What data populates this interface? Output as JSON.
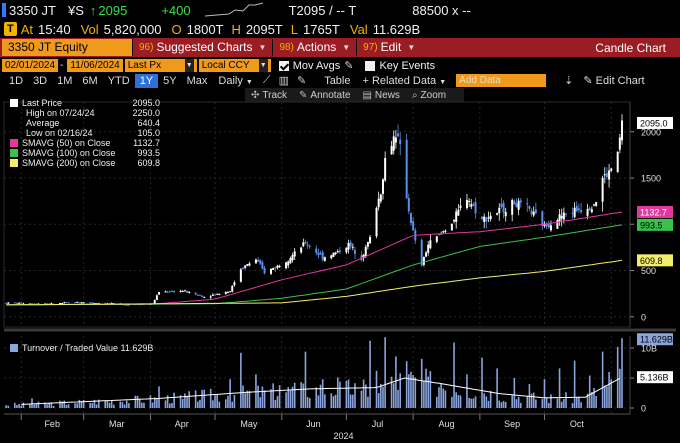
{
  "quote": {
    "ticker": "3350 JT",
    "currency": "¥S",
    "arrow": "↑",
    "last": "2095",
    "change": "+400",
    "t_label": "T2095 / -- T",
    "bid_ask": "88500 x --",
    "at_label": "At",
    "time": "15:40",
    "vol_label": "Vol",
    "vol": "5,820,000",
    "open_label": "O",
    "open": "1800T",
    "high_label": "H",
    "high": "2095T",
    "low_label": "L",
    "low": "1765T",
    "val_label": "Val",
    "val": "11.629B",
    "badge": "T"
  },
  "menu": {
    "security": "3350 JT Equity",
    "items": [
      {
        "num": "96)",
        "label": "Suggested Charts"
      },
      {
        "num": "98)",
        "label": "Actions"
      },
      {
        "num": "97)",
        "label": "Edit"
      }
    ],
    "title": "Candle Chart"
  },
  "controls": {
    "start_date": "02/01/2024",
    "end_date": "11/06/2024",
    "field": "Last Px",
    "ccy": "Local CCY",
    "mov_avgs": "Mov Avgs",
    "key_events": "Key Events",
    "ranges": [
      "1D",
      "3D",
      "1M",
      "6M",
      "YTD",
      "1Y",
      "5Y",
      "Max"
    ],
    "selected_range": "1Y",
    "period": "Daily",
    "table": "Table",
    "related": "+ Related Data",
    "add_placeholder": "Add Data",
    "edit_chart": "Edit Chart"
  },
  "tools": [
    "Track",
    "Annotate",
    "News",
    "Zoom"
  ],
  "legend": [
    {
      "label": "Last Price",
      "value": "2095.0",
      "color": "#ffffff"
    },
    {
      "label": "High on 07/24/24",
      "value": "2250.0",
      "color": ""
    },
    {
      "label": "Average",
      "value": "640.4",
      "color": ""
    },
    {
      "label": "Low on 02/16/24",
      "value": "105.0",
      "color": ""
    },
    {
      "label": "SMAVG (50)  on Close",
      "value": "1132.7",
      "color": "#e0399b"
    },
    {
      "label": "SMAVG (100)  on Close",
      "value": "993.5",
      "color": "#39c24a"
    },
    {
      "label": "SMAVG (200)  on Close",
      "value": "609.8",
      "color": "#f2ee6a"
    }
  ],
  "volume_legend": "Turnover / Traded Value 11.629B",
  "price_labels": {
    "last": "2095.0",
    "sma50": "1132.7",
    "sma100": "993.5",
    "sma200": "609.8",
    "turnover": "11.629B",
    "turnover_avg": "5.136B"
  },
  "colors": {
    "up": "#ffffff",
    "down": "#5b8fe8",
    "sma50": "#e0399b",
    "sma100": "#39c24a",
    "sma200": "#f2ee6a",
    "volume": "#8aa4dd",
    "accent": "#f09a1c"
  },
  "chart_data": [
    {
      "type": "candlestick",
      "title": "",
      "x_range": [
        "2024-01-24",
        "2024-11-06"
      ],
      "ylim": [
        -100,
        2300
      ],
      "y_ticks": [
        0,
        500,
        1000,
        1500,
        2000
      ],
      "month_labels": [
        "Feb",
        "Mar",
        "Apr",
        "May",
        "Jun",
        "Jul",
        "Aug",
        "Sep",
        "Oct"
      ],
      "year_label": "2024",
      "grid": true,
      "price_points": [
        {
          "date": "2024-01-25",
          "close": 150
        },
        {
          "date": "2024-02-16",
          "close": 140
        },
        {
          "date": "2024-02-26",
          "close": 160
        },
        {
          "date": "2024-03-20",
          "close": 135
        },
        {
          "date": "2024-04-02",
          "close": 140
        },
        {
          "date": "2024-04-05",
          "close": 270
        },
        {
          "date": "2024-04-16",
          "close": 280
        },
        {
          "date": "2024-04-26",
          "close": 215
        },
        {
          "date": "2024-05-08",
          "close": 280
        },
        {
          "date": "2024-05-13",
          "close": 520
        },
        {
          "date": "2024-05-20",
          "close": 620
        },
        {
          "date": "2024-05-24",
          "close": 480
        },
        {
          "date": "2024-05-31",
          "close": 560
        },
        {
          "date": "2024-06-07",
          "close": 680
        },
        {
          "date": "2024-06-12",
          "close": 800
        },
        {
          "date": "2024-06-20",
          "close": 640
        },
        {
          "date": "2024-06-27",
          "close": 700
        },
        {
          "date": "2024-07-02",
          "close": 780
        },
        {
          "date": "2024-07-08",
          "close": 640
        },
        {
          "date": "2024-07-12",
          "close": 850
        },
        {
          "date": "2024-07-15",
          "close": 1200
        },
        {
          "date": "2024-07-17",
          "close": 1350
        },
        {
          "date": "2024-07-19",
          "close": 1700
        },
        {
          "date": "2024-07-24",
          "close": 2000
        },
        {
          "date": "2024-07-26",
          "close": 1800
        },
        {
          "date": "2024-07-30",
          "close": 1150
        },
        {
          "date": "2024-08-02",
          "close": 800
        },
        {
          "date": "2024-08-05",
          "close": 560
        },
        {
          "date": "2024-08-08",
          "close": 780
        },
        {
          "date": "2024-08-14",
          "close": 900
        },
        {
          "date": "2024-08-20",
          "close": 1050
        },
        {
          "date": "2024-08-26",
          "close": 1300
        },
        {
          "date": "2024-09-02",
          "close": 1050
        },
        {
          "date": "2024-09-09",
          "close": 1130
        },
        {
          "date": "2024-09-17",
          "close": 1230
        },
        {
          "date": "2024-09-24",
          "close": 1150
        },
        {
          "date": "2024-10-01",
          "close": 980
        },
        {
          "date": "2024-10-08",
          "close": 1080
        },
        {
          "date": "2024-10-15",
          "close": 1150
        },
        {
          "date": "2024-10-22",
          "close": 1200
        },
        {
          "date": "2024-10-25",
          "close": 1250
        },
        {
          "date": "2024-10-28",
          "close": 1500
        },
        {
          "date": "2024-10-31",
          "close": 1550
        },
        {
          "date": "2024-11-04",
          "close": 1750
        },
        {
          "date": "2024-11-06",
          "close": 2095
        }
      ],
      "series": [
        {
          "name": "SMAVG (50)  on Close",
          "points": [
            [
              "2024-01-25",
              130
            ],
            [
              "2024-04-01",
              135
            ],
            [
              "2024-05-01",
              190
            ],
            [
              "2024-06-01",
              400
            ],
            [
              "2024-07-01",
              560
            ],
            [
              "2024-08-01",
              880
            ],
            [
              "2024-09-01",
              920
            ],
            [
              "2024-10-01",
              1000
            ],
            [
              "2024-11-06",
              1132.7
            ]
          ]
        },
        {
          "name": "SMAVG (100)  on Close",
          "points": [
            [
              "2024-01-25",
              130
            ],
            [
              "2024-05-01",
              140
            ],
            [
              "2024-06-01",
              200
            ],
            [
              "2024-07-01",
              300
            ],
            [
              "2024-08-01",
              560
            ],
            [
              "2024-09-01",
              760
            ],
            [
              "2024-10-01",
              860
            ],
            [
              "2024-11-06",
              993.5
            ]
          ]
        },
        {
          "name": "SMAVG (200)  on Close",
          "points": [
            [
              "2024-01-25",
              128
            ],
            [
              "2024-06-01",
              150
            ],
            [
              "2024-07-01",
              220
            ],
            [
              "2024-08-01",
              330
            ],
            [
              "2024-09-01",
              420
            ],
            [
              "2024-10-01",
              490
            ],
            [
              "2024-11-06",
              609.8
            ]
          ]
        }
      ]
    },
    {
      "type": "bar",
      "title": "",
      "series_label": "Turnover / Traded Value",
      "ylim": [
        -1,
        12
      ],
      "y_ticks": [
        0,
        5,
        10
      ],
      "y_tick_labels": [
        "0",
        "5",
        "10B"
      ],
      "last_value": 11.629,
      "average_value": 5.136,
      "bars": [
        [
          "2024-02-06",
          1.6
        ],
        [
          "2024-02-26",
          0.8
        ],
        [
          "2024-04-05",
          3.6
        ],
        [
          "2024-04-16",
          1.5
        ],
        [
          "2024-05-08",
          4.8
        ],
        [
          "2024-05-13",
          9.2
        ],
        [
          "2024-05-20",
          5.6
        ],
        [
          "2024-05-31",
          3.8
        ],
        [
          "2024-06-07",
          4.2
        ],
        [
          "2024-06-12",
          9.4
        ],
        [
          "2024-06-20",
          4.8
        ],
        [
          "2024-06-27",
          5.1
        ],
        [
          "2024-07-08",
          2.9
        ],
        [
          "2024-07-12",
          11.2
        ],
        [
          "2024-07-15",
          6.2
        ],
        [
          "2024-07-19",
          11.8
        ],
        [
          "2024-07-24",
          8.6
        ],
        [
          "2024-07-29",
          7.8
        ],
        [
          "2024-08-05",
          8.2
        ],
        [
          "2024-08-14",
          4.1
        ],
        [
          "2024-08-20",
          10.9
        ],
        [
          "2024-08-26",
          5.6
        ],
        [
          "2024-09-02",
          8.4
        ],
        [
          "2024-09-09",
          6.6
        ],
        [
          "2024-09-17",
          5.0
        ],
        [
          "2024-09-24",
          4.0
        ],
        [
          "2024-10-01",
          4.8
        ],
        [
          "2024-10-08",
          6.6
        ],
        [
          "2024-10-15",
          7.9
        ],
        [
          "2024-10-22",
          5.4
        ],
        [
          "2024-10-28",
          9.4
        ],
        [
          "2024-10-31",
          6.0
        ],
        [
          "2024-11-04",
          10.2
        ],
        [
          "2024-11-06",
          11.629
        ]
      ],
      "average_points": [
        [
          "2024-02-01",
          0.6
        ],
        [
          "2024-04-05",
          1.6
        ],
        [
          "2024-05-15",
          2.6
        ],
        [
          "2024-06-15",
          3.2
        ],
        [
          "2024-07-15",
          3.4
        ],
        [
          "2024-07-28",
          5.0
        ],
        [
          "2024-08-15",
          4.0
        ],
        [
          "2024-09-10",
          2.4
        ],
        [
          "2024-10-01",
          1.7
        ],
        [
          "2024-10-20",
          1.8
        ],
        [
          "2024-11-06",
          5.136
        ]
      ]
    }
  ]
}
